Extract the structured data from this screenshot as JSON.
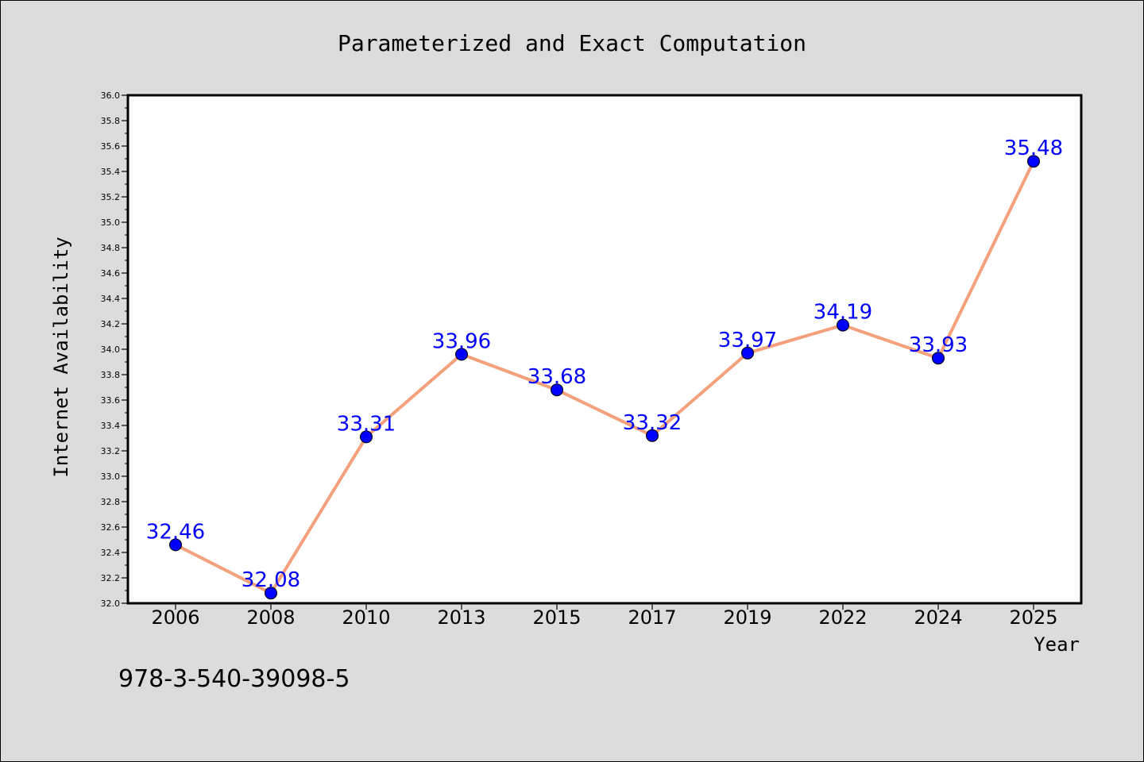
{
  "chart_data": {
    "type": "line",
    "title": "Parameterized and Exact Computation",
    "xlabel": "Year",
    "ylabel": "Internet Availability",
    "categories": [
      "2006",
      "2008",
      "2010",
      "2013",
      "2015",
      "2017",
      "2019",
      "2022",
      "2024",
      "2025"
    ],
    "series": [
      {
        "values": [
          32.46,
          32.08,
          33.31,
          33.96,
          33.68,
          33.32,
          33.97,
          34.19,
          33.93,
          35.48
        ]
      }
    ],
    "data_labels": [
      "32.46",
      "32.08",
      "33.31",
      "33.96",
      "33.68",
      "33.32",
      "33.97",
      "34.19",
      "33.93",
      "35.48"
    ],
    "ylim": [
      32.0,
      36.0
    ],
    "yticks": [
      "32.0",
      "32.2",
      "32.4",
      "32.6",
      "32.8",
      "33.0",
      "33.2",
      "33.4",
      "33.6",
      "33.8",
      "34.0",
      "34.2",
      "34.4",
      "34.6",
      "34.8",
      "35.0",
      "35.2",
      "35.4",
      "35.6",
      "35.8",
      "36.0"
    ],
    "grid": false,
    "legend": "none",
    "colors": {
      "line": "#f4a07a",
      "marker": "#0000ff",
      "label": "#0000ff",
      "background": "#dcdcdc",
      "plot_background": "#ffffff"
    }
  },
  "footer": {
    "text": "978-3-540-39098-5"
  }
}
